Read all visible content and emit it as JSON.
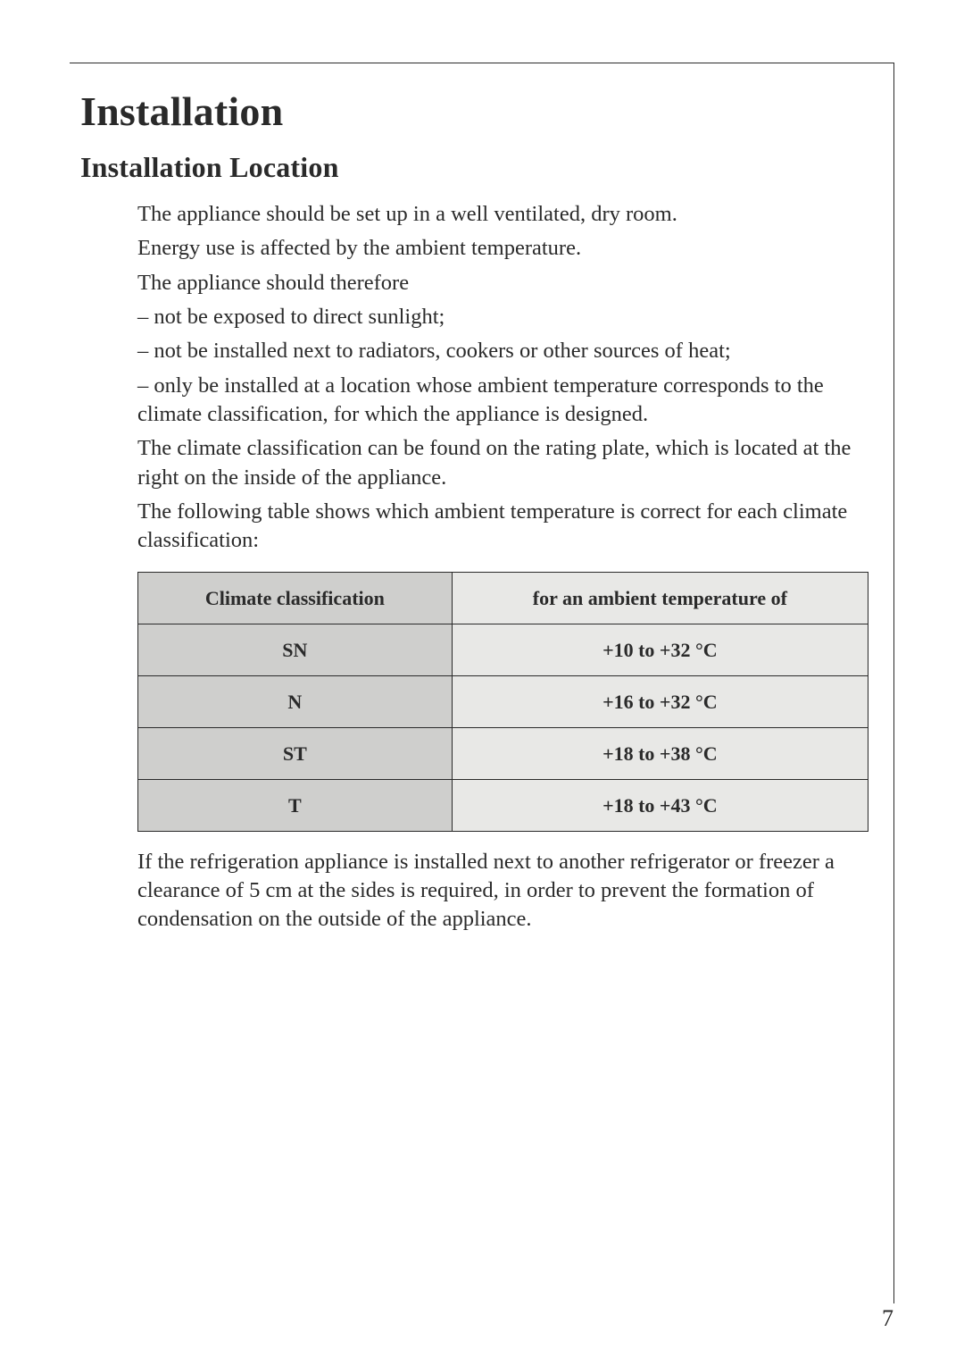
{
  "page": {
    "number": "7"
  },
  "heading1": "Installation",
  "heading2": "Installation Location",
  "paragraphs": {
    "p1": "The appliance should be set up in a well ventilated, dry room.",
    "p2a": "Energy use is affected by the ambient temperature.",
    "p2b": "The appliance should therefore",
    "b1": "– not be exposed to direct sunlight;",
    "b2": "– not be installed next to radiators, cookers or other sources of heat;",
    "b3": "– only be installed at a location whose ambient temperature corresponds to the climate classification, for which the appliance is designed.",
    "p3": "The climate classification can be found on the rating plate, which is located at the right on the inside of the appliance.",
    "p4": "The following table shows which ambient temperature is correct for each climate classification:",
    "p5": "If the refrigeration appliance is installed next to another refrigerator or freezer a clearance of 5 cm at the sides is required, in order to pre­vent the formation of condensation on the outside of the appliance."
  },
  "table": {
    "columns": [
      "Climate classification",
      "for an ambient temperature of"
    ],
    "rows": [
      [
        "SN",
        "+10 to +32 °C"
      ],
      [
        "N",
        "+16 to +32 °C"
      ],
      [
        "ST",
        "+18 to +38 °C"
      ],
      [
        "T",
        "+18 to +43 °C"
      ]
    ],
    "col_bg": [
      "#cfcfcd",
      "#e8e8e6"
    ],
    "border_color": "#2a2a2a",
    "header_fontweight": 700,
    "cell_fontweight": 700,
    "fontsize": 22
  },
  "colors": {
    "text": "#2a2a2a",
    "background": "#ffffff",
    "rule": "#2a2a2a"
  },
  "typography": {
    "body_fontsize": 24.5,
    "h1_fontsize": 46,
    "h2_fontsize": 32,
    "font_family": "Georgia, 'Times New Roman', serif"
  }
}
